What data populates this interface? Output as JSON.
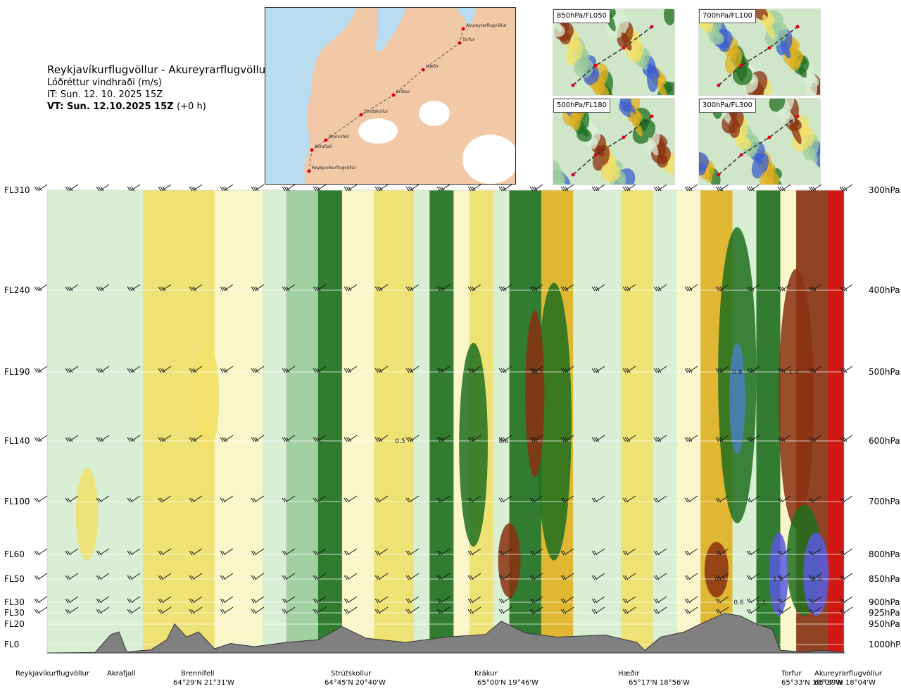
{
  "header": {
    "route": "Reykjavíkurflugvöllur - Akureyrarflugvöllur",
    "parameter": "Lóðréttur vindhraði (m/s)",
    "issue_time": "IT: Sun. 12. 10. 2025 15Z",
    "valid_time": "VT: Sun. 12.10.2025 15Z",
    "lead_time": "(+0 h)"
  },
  "map": {
    "points": [
      "Reykjavíkurflugvöllur",
      "Akrafjall",
      "Brennifell",
      "Strútskollur",
      "Krákur",
      "Hæðir",
      "Torfur",
      "Akureyrarflugvöllur"
    ],
    "colors": {
      "land": "#f2c9a6",
      "sea": "#b9dcf0",
      "ice": "#ffffff",
      "route": "#555555",
      "point": "#e0001a"
    }
  },
  "thumbnails": [
    {
      "label": "850hPa/FL050"
    },
    {
      "label": "700hPa/FL100"
    },
    {
      "label": "500hPa/FL180"
    },
    {
      "label": "300hPa/FL300"
    }
  ],
  "chart_data": {
    "type": "heatmap",
    "title": "Lóðréttur vindhraði (m/s)",
    "x": {
      "unit": "route position",
      "range": [
        0,
        1
      ]
    },
    "y": {
      "unit": "hPa",
      "range": [
        1000,
        300
      ],
      "left_ticks": [
        "FL310",
        "FL240",
        "FL190",
        "FL140",
        "FL100",
        "FL60",
        "FL50",
        "FL30",
        "FL30",
        "FL20",
        "FL0"
      ],
      "right_ticks": [
        "300hPa",
        "400hPa",
        "500hPa",
        "600hPa",
        "700hPa",
        "800hPa",
        "850hPa",
        "900hPa",
        "925hPa",
        "950hPa",
        "1000hPa"
      ],
      "levels_hPa": [
        300,
        400,
        500,
        600,
        700,
        800,
        850,
        900,
        925,
        950,
        1000
      ]
    },
    "locations": [
      {
        "name": "Reykjavíkurflugvöllur",
        "coord": "",
        "pos": 0.0
      },
      {
        "name": "Akrafjall",
        "coord": "",
        "pos": 0.07
      },
      {
        "name": "Brennifell",
        "coord": "64°29'N 21°31'W",
        "pos": 0.18
      },
      {
        "name": "Strútskollur",
        "coord": "64°45'N 20°40'W",
        "pos": 0.38
      },
      {
        "name": "Krákur",
        "coord": "65°00'N 19°46'W",
        "pos": 0.57
      },
      {
        "name": "Hæðir",
        "coord": "65°17'N 18°56'W",
        "pos": 0.76
      },
      {
        "name": "Torfur",
        "coord": "65°33'N 18°07'W",
        "pos": 0.94
      },
      {
        "name": "Akureyrarflugvöllur",
        "coord": "65°39'N 18°04'W",
        "pos": 0.99
      }
    ],
    "contour_labels": [
      {
        "text": "0.5",
        "x": 0.443,
        "p": 600
      },
      {
        "text": "0.6",
        "x": 0.573,
        "p": 600
      },
      {
        "text": "0.7",
        "x": 0.616,
        "p": 500
      },
      {
        "text": "0.8",
        "x": 0.866,
        "p": 500
      },
      {
        "text": "1.4",
        "x": 0.937,
        "p": 500
      },
      {
        "text": "0.5",
        "x": 0.844,
        "p": 850
      },
      {
        "text": "1.1",
        "x": 0.917,
        "p": 850
      },
      {
        "text": "2.0",
        "x": 0.966,
        "p": 850
      },
      {
        "text": "0.6",
        "x": 0.868,
        "p": 900
      },
      {
        "text": "1.1",
        "x": 0.896,
        "p": 900
      }
    ],
    "colors": {
      "strong_down": "#5a5ae0",
      "mod_down": "#1f6f1f",
      "light_down": "#9ccc9c",
      "very_light_down": "#d8eed4",
      "zero": "#fdf6c8",
      "light_up": "#f2e06a",
      "mod_up": "#e0b020",
      "strong_up": "#8a3010",
      "extreme_up": "#d00000",
      "terrain": "#808080"
    }
  }
}
